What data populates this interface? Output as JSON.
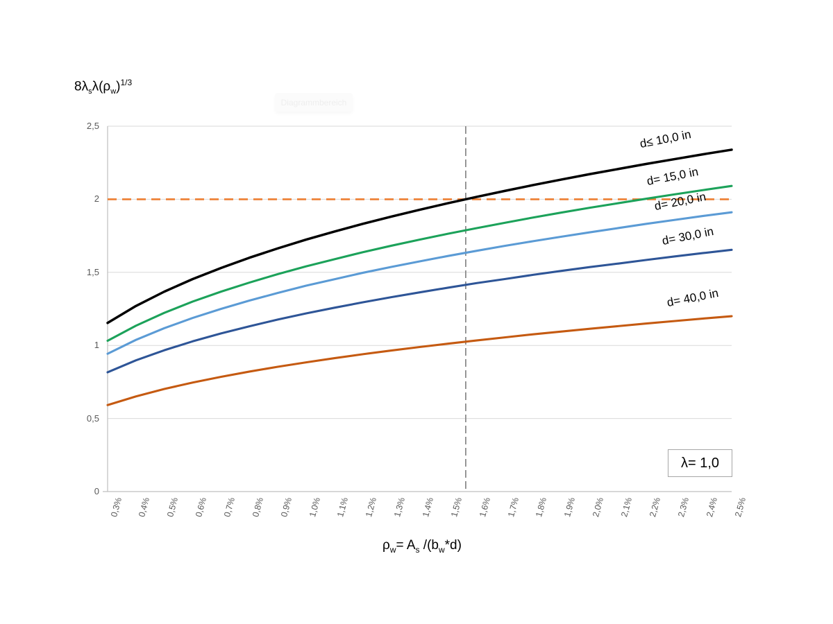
{
  "ghost_tooltip": {
    "label": "Diagrammbereich"
  },
  "annotation_box": {
    "label": "λ= 1,0"
  },
  "y_axis_title": {
    "parts": [
      "8λ",
      "s",
      "λ(ρ",
      "w",
      ")",
      "1/3"
    ]
  },
  "x_axis_title": {
    "parts": [
      "ρ",
      "w",
      "= A",
      "s",
      " /(b",
      "w",
      "*d)"
    ]
  },
  "chart_data": {
    "type": "line",
    "title": "",
    "ylabel_plain": "8·λs·λ·(ρw)^(1/3)",
    "xlabel_plain": "ρw = As /(bw*d)",
    "ylim": [
      0,
      2.5
    ],
    "grid": "horizontal-only",
    "legend_position": "labels-on-curves",
    "x_labels": [
      "0,3%",
      "0,4%",
      "0,5%",
      "0,6%",
      "0,7%",
      "0,8%",
      "0,9%",
      "1,0%",
      "1,1%",
      "1,2%",
      "1,3%",
      "1,4%",
      "1,5%",
      "1,6%",
      "1,7%",
      "1,8%",
      "1,9%",
      "2,0%",
      "2,1%",
      "2,2%",
      "2,3%",
      "2,4%",
      "2,5%"
    ],
    "x_values_percent": [
      0.3,
      0.4,
      0.5,
      0.6,
      0.7,
      0.8,
      0.9,
      1.0,
      1.1,
      1.2,
      1.3,
      1.4,
      1.5,
      1.6,
      1.7,
      1.8,
      1.9,
      2.0,
      2.1,
      2.2,
      2.3,
      2.4,
      2.5
    ],
    "y_ticks": [
      {
        "value": 0,
        "label": "0"
      },
      {
        "value": 0.5,
        "label": "0,5"
      },
      {
        "value": 1,
        "label": "1"
      },
      {
        "value": 1.5,
        "label": "1,5"
      },
      {
        "value": 2,
        "label": "2"
      },
      {
        "value": 2.5,
        "label": "2,5"
      }
    ],
    "series": [
      {
        "name": "d≤ 10,0 in",
        "color": "#000000",
        "values": [
          1.154,
          1.27,
          1.368,
          1.454,
          1.53,
          1.6,
          1.664,
          1.724,
          1.779,
          1.832,
          1.881,
          1.928,
          1.973,
          2.016,
          2.057,
          2.097,
          2.135,
          2.172,
          2.207,
          2.242,
          2.275,
          2.308,
          2.339
        ]
      },
      {
        "name": "d= 15,0 in",
        "color": "#1ca25a",
        "values": [
          1.032,
          1.135,
          1.223,
          1.3,
          1.368,
          1.43,
          1.488,
          1.541,
          1.59,
          1.638,
          1.682,
          1.724,
          1.764,
          1.802,
          1.839,
          1.875,
          1.909,
          1.942,
          1.973,
          2.004,
          2.034,
          2.063,
          2.091
        ]
      },
      {
        "name": "d= 20,0 in",
        "color": "#5b9bd5",
        "values": [
          0.943,
          1.038,
          1.118,
          1.188,
          1.25,
          1.307,
          1.359,
          1.409,
          1.453,
          1.497,
          1.537,
          1.575,
          1.612,
          1.647,
          1.681,
          1.713,
          1.744,
          1.774,
          1.803,
          1.832,
          1.859,
          1.886,
          1.911
        ]
      },
      {
        "name": "d= 30,0 in",
        "color": "#2e5597",
        "values": [
          0.816,
          0.898,
          0.967,
          1.028,
          1.082,
          1.131,
          1.177,
          1.219,
          1.258,
          1.295,
          1.33,
          1.363,
          1.395,
          1.426,
          1.454,
          1.483,
          1.51,
          1.536,
          1.56,
          1.585,
          1.609,
          1.632,
          1.654
        ]
      },
      {
        "name": "d= 40,0 in",
        "color": "#c55a11",
        "values": [
          0.592,
          0.651,
          0.702,
          0.746,
          0.785,
          0.821,
          0.854,
          0.884,
          0.913,
          0.94,
          0.965,
          0.989,
          1.012,
          1.034,
          1.055,
          1.076,
          1.095,
          1.114,
          1.132,
          1.15,
          1.167,
          1.184,
          1.2
        ]
      }
    ],
    "reference_lines": {
      "horizontal": {
        "y": 2.0,
        "color": "#ed7d31",
        "style": "dashed"
      },
      "vertical": {
        "x_percent": 1.5625,
        "color": "#8c8c8c",
        "style": "dashed"
      }
    },
    "colors": {
      "grid": "#d9d9d9",
      "axis": "#bfbfbf",
      "tick_text": "#595959"
    }
  }
}
